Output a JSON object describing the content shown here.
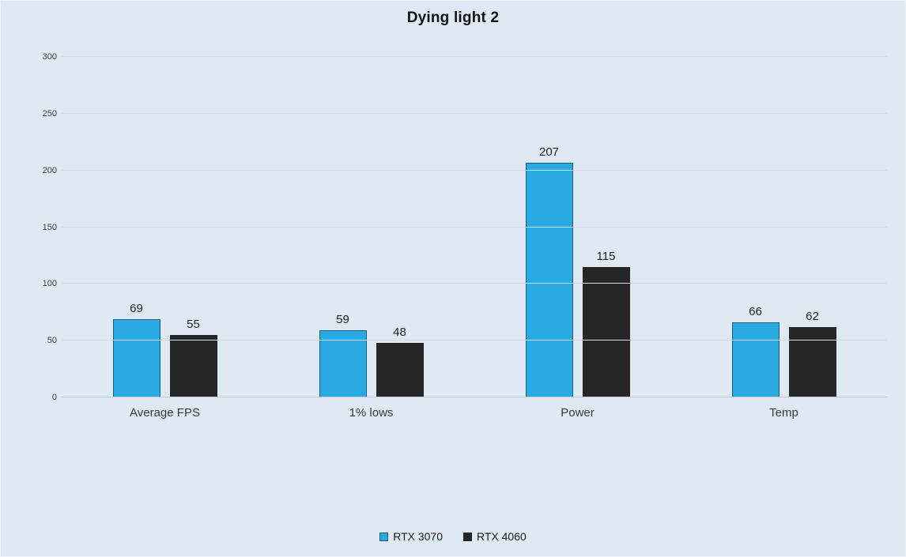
{
  "colors": {
    "background": "#dee9f4",
    "series1_fill": "#29a9e1",
    "series1_border": "#1d5f7d",
    "series2_fill": "#262626",
    "gridline": "#d2dbe7",
    "axis_line": "#c2ccd8"
  },
  "chart_data": {
    "type": "bar",
    "title": "Dying light 2",
    "categories": [
      "Average FPS",
      "1% lows",
      "Power",
      "Temp"
    ],
    "series": [
      {
        "name": "RTX 3070",
        "color": "#29a9e1",
        "values": [
          69,
          59,
          207,
          66
        ]
      },
      {
        "name": "RTX 4060",
        "color": "#262626",
        "values": [
          55,
          48,
          115,
          62
        ]
      }
    ],
    "xlabel": "",
    "ylabel": "",
    "ylim": [
      0,
      300
    ],
    "yticks": [
      0,
      50,
      100,
      150,
      200,
      250,
      300
    ],
    "grid": true,
    "data_labels": true,
    "legend_position": "bottom"
  }
}
